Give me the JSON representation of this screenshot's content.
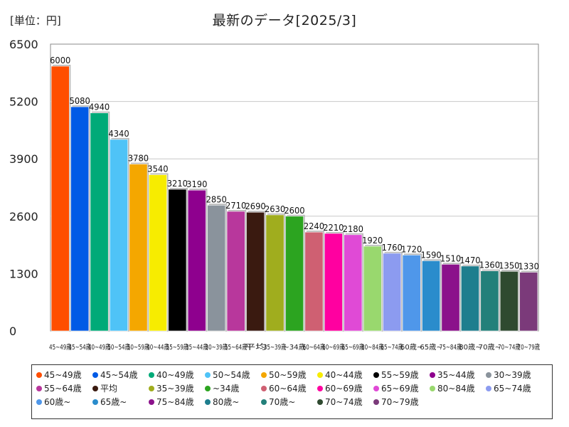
{
  "unit_label": "[単位：円]",
  "chart_data": {
    "type": "bar",
    "title": "最新のデータ[2025/3]",
    "ylim": [
      0,
      6500
    ],
    "yticks": [
      0,
      1300,
      2600,
      3900,
      5200,
      6500
    ],
    "grid": true,
    "legend_position": "bottom",
    "categories": [
      "45~49歳",
      "45~54歳",
      "40~49歳",
      "50~54歳",
      "50~59歳",
      "40~44歳",
      "55~59歳",
      "35~44歳",
      "30~39歳",
      "55~64歳",
      "平均",
      "35~39歳",
      "~34歳",
      "60~64歳",
      "60~69歳",
      "65~69歳",
      "80~84歳",
      "65~74歳",
      "60歳~",
      "65歳~",
      "75~84歳",
      "80歳~",
      "70歳~",
      "70~74歳",
      "70~79歳"
    ],
    "values": [
      6000,
      5080,
      4940,
      4340,
      3780,
      3540,
      3210,
      3190,
      2850,
      2710,
      2690,
      2630,
      2600,
      2240,
      2210,
      2180,
      1920,
      1760,
      1720,
      1590,
      1510,
      1470,
      1360,
      1350,
      1330
    ],
    "colors": [
      "#ff4e00",
      "#005ae6",
      "#00aa78",
      "#4fc3f7",
      "#f4a700",
      "#f7ec00",
      "#000000",
      "#8e008e",
      "#8a939c",
      "#b8379c",
      "#3a1a10",
      "#a0ad1e",
      "#2ca420",
      "#cf6072",
      "#ff00a0",
      "#e04ad6",
      "#99d86e",
      "#8c9bf0",
      "#4f97ea",
      "#2a8ccc",
      "#8b128b",
      "#1e7e8e",
      "#23807a",
      "#2f4a30",
      "#7b3a7a"
    ]
  }
}
